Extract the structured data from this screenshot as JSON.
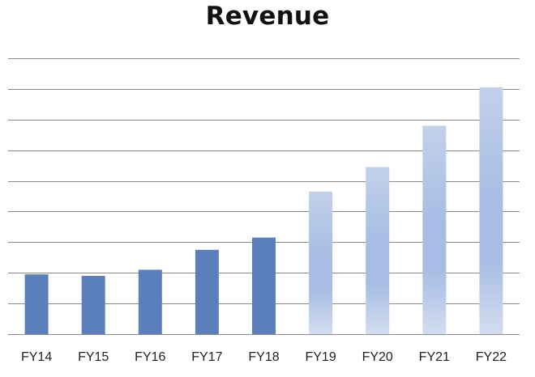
{
  "chart_data": {
    "type": "bar",
    "title": "Revenue",
    "xlabel": "",
    "ylabel": "",
    "categories": [
      "FY14",
      "FY15",
      "FY16",
      "FY17",
      "FY18",
      "FY19",
      "FY20",
      "FY21",
      "FY22"
    ],
    "values": [
      1.95,
      1.9,
      2.1,
      2.75,
      3.15,
      4.65,
      5.45,
      6.8,
      8.05
    ],
    "ylim": [
      0,
      9
    ],
    "y_tick_labels_shown": false,
    "grid": true,
    "legend": "none",
    "colors": {
      "actual": "#5b7fba",
      "projected_light": "#d3ddf0",
      "projected_mid": "#a7bde3",
      "projected_edge": "#c3d1ea",
      "gridline": "#8a8a8a"
    },
    "series_style": [
      "solid",
      "solid",
      "solid",
      "solid",
      "solid",
      "gradient",
      "gradient",
      "gradient",
      "gradient"
    ]
  }
}
